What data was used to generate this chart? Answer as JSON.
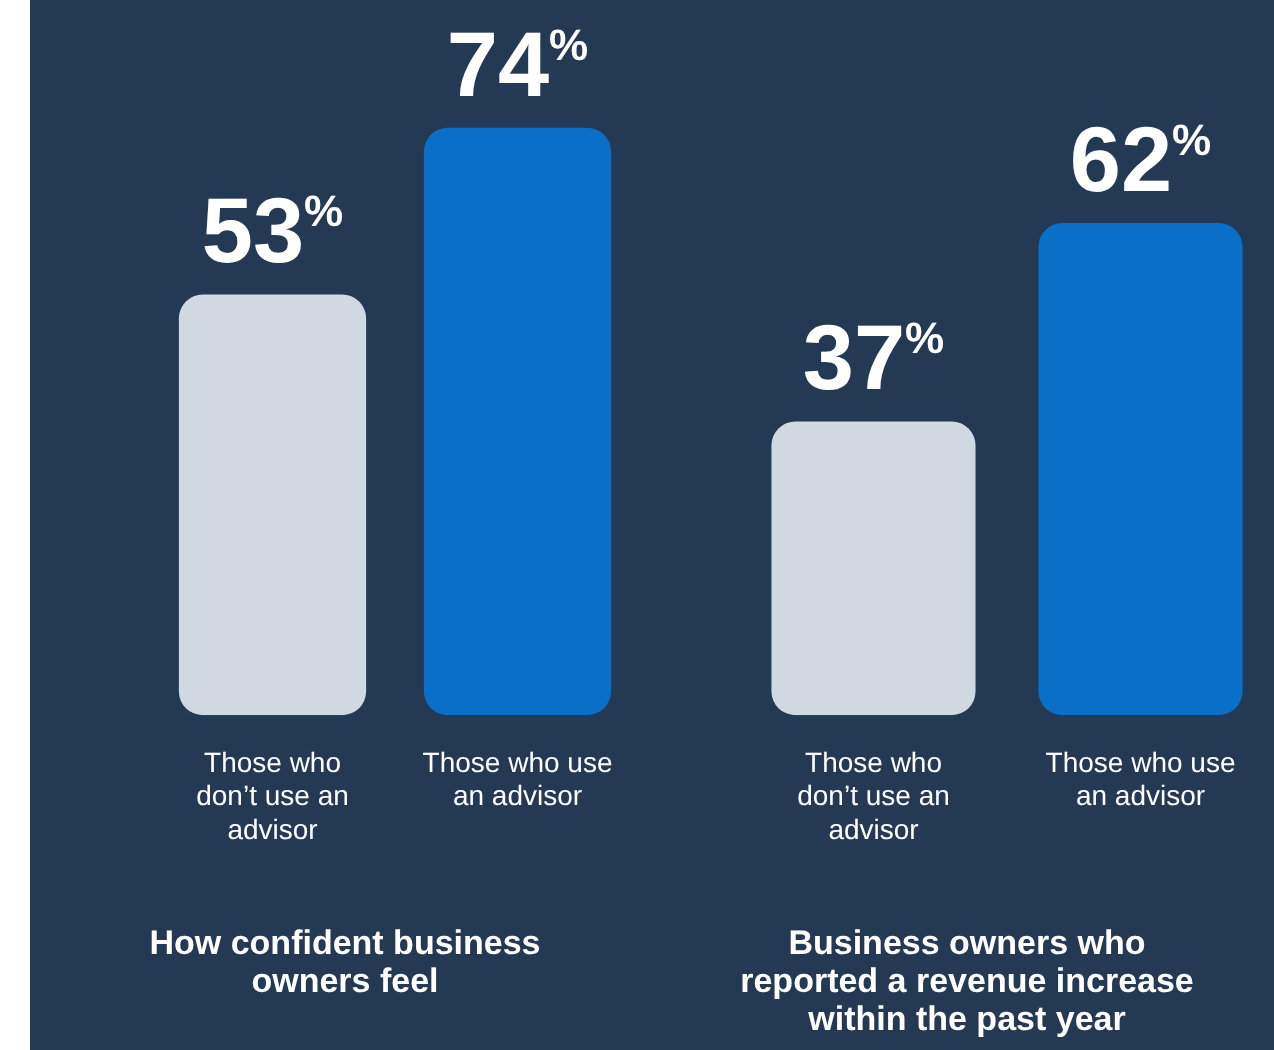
{
  "chart_data": [
    {
      "type": "bar",
      "title": "How confident business owners feel",
      "categories": [
        "Those who don’t use an advisor",
        "Those who use an advisor"
      ],
      "values": [
        53,
        74
      ],
      "colors": [
        "#d0d9e2",
        "#0a6fc6"
      ],
      "value_labels": [
        "53%",
        "74%"
      ],
      "grid": false,
      "legend": false,
      "tick_labels": "x"
    },
    {
      "type": "bar",
      "title": "Business owners who reported a revenue increase within the past year",
      "categories": [
        "Those who don’t use an advisor",
        "Those who use an advisor"
      ],
      "values": [
        37,
        62
      ],
      "colors": [
        "#d0d9e2",
        "#0a6fc6"
      ],
      "value_labels": [
        "37%",
        "62%"
      ],
      "grid": false,
      "legend": false,
      "tick_labels": "x"
    }
  ]
}
